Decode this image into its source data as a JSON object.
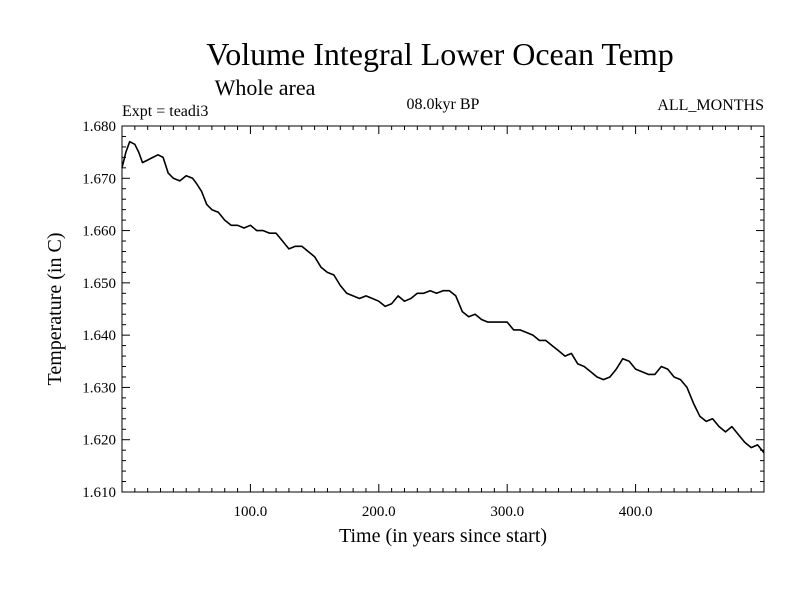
{
  "chart_data": {
    "type": "line",
    "title": "Volume Integral Lower Ocean Temp",
    "subtitle": "Whole area",
    "experiment": "Expt = teadi3",
    "period": "08.0kyr BP",
    "months": "ALL_MONTHS",
    "xlabel": "Time (in years since start)",
    "ylabel": "Temperature (in C)",
    "xlim": [
      0,
      500
    ],
    "ylim": [
      1.61,
      1.68
    ],
    "xticks": [
      100,
      200,
      300,
      400
    ],
    "xtick_labels": [
      "100.0",
      "200.0",
      "300.0",
      "400.0"
    ],
    "yticks": [
      1.61,
      1.62,
      1.63,
      1.64,
      1.65,
      1.66,
      1.67,
      1.68
    ],
    "ytick_labels": [
      "1.610",
      "1.620",
      "1.630",
      "1.640",
      "1.650",
      "1.660",
      "1.670",
      "1.680"
    ],
    "grid": false,
    "series": [
      {
        "name": "teadi3",
        "color": "#000000",
        "x": [
          0,
          3,
          6,
          10,
          13,
          16,
          20,
          24,
          28,
          32,
          36,
          40,
          45,
          50,
          55,
          58,
          62,
          66,
          70,
          75,
          80,
          85,
          90,
          95,
          100,
          105,
          110,
          115,
          120,
          125,
          130,
          135,
          140,
          145,
          150,
          155,
          160,
          165,
          170,
          175,
          180,
          185,
          190,
          195,
          200,
          205,
          210,
          215,
          220,
          225,
          230,
          235,
          240,
          245,
          250,
          255,
          260,
          265,
          270,
          275,
          280,
          285,
          290,
          295,
          300,
          305,
          310,
          315,
          320,
          325,
          330,
          335,
          340,
          345,
          350,
          355,
          360,
          365,
          370,
          375,
          380,
          385,
          390,
          395,
          400,
          405,
          410,
          415,
          420,
          425,
          430,
          435,
          440,
          445,
          450,
          455,
          460,
          465,
          470,
          475,
          480,
          485,
          490,
          495,
          500
        ],
        "y": [
          1.672,
          1.675,
          1.677,
          1.6765,
          1.675,
          1.673,
          1.6735,
          1.674,
          1.6745,
          1.674,
          1.671,
          1.67,
          1.6695,
          1.6705,
          1.67,
          1.669,
          1.6675,
          1.665,
          1.664,
          1.6635,
          1.662,
          1.661,
          1.661,
          1.6605,
          1.661,
          1.66,
          1.66,
          1.6595,
          1.6595,
          1.658,
          1.6565,
          1.657,
          1.657,
          1.656,
          1.655,
          1.653,
          1.652,
          1.6515,
          1.6495,
          1.648,
          1.6475,
          1.647,
          1.6475,
          1.647,
          1.6465,
          1.6455,
          1.646,
          1.6475,
          1.6465,
          1.647,
          1.648,
          1.648,
          1.6485,
          1.648,
          1.6485,
          1.6485,
          1.6475,
          1.6445,
          1.6435,
          1.644,
          1.643,
          1.6425,
          1.6425,
          1.6425,
          1.6425,
          1.641,
          1.641,
          1.6405,
          1.64,
          1.639,
          1.639,
          1.638,
          1.637,
          1.636,
          1.6365,
          1.6345,
          1.634,
          1.633,
          1.632,
          1.6315,
          1.632,
          1.6335,
          1.6355,
          1.635,
          1.6335,
          1.633,
          1.6325,
          1.6325,
          1.634,
          1.6335,
          1.632,
          1.6315,
          1.63,
          1.627,
          1.6245,
          1.6235,
          1.624,
          1.6225,
          1.6215,
          1.6225,
          1.621,
          1.6195,
          1.6185,
          1.619,
          1.6175
        ]
      }
    ]
  }
}
